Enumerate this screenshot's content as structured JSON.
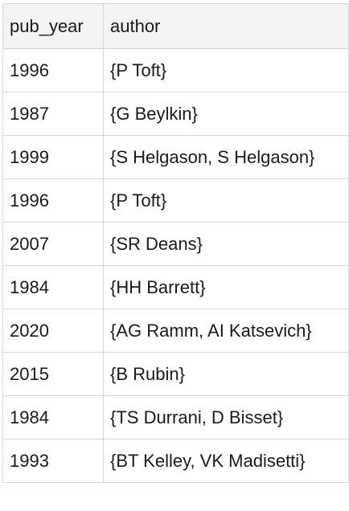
{
  "table": {
    "headers": [
      "pub_year",
      "author"
    ],
    "rows": [
      [
        "1996",
        "{P Toft}"
      ],
      [
        "1987",
        "{G Beylkin}"
      ],
      [
        "1999",
        "{S Helgason, S Helgason}"
      ],
      [
        "1996",
        "{P Toft}"
      ],
      [
        "2007",
        "{SR Deans}"
      ],
      [
        "1984",
        "{HH Barrett}"
      ],
      [
        "2020",
        "{AG Ramm, AI Katsevich}"
      ],
      [
        "2015",
        "{B Rubin}"
      ],
      [
        "1984",
        "{TS Durrani, D Bisset}"
      ],
      [
        "1993",
        "{BT Kelley, VK Madisetti}"
      ]
    ]
  }
}
